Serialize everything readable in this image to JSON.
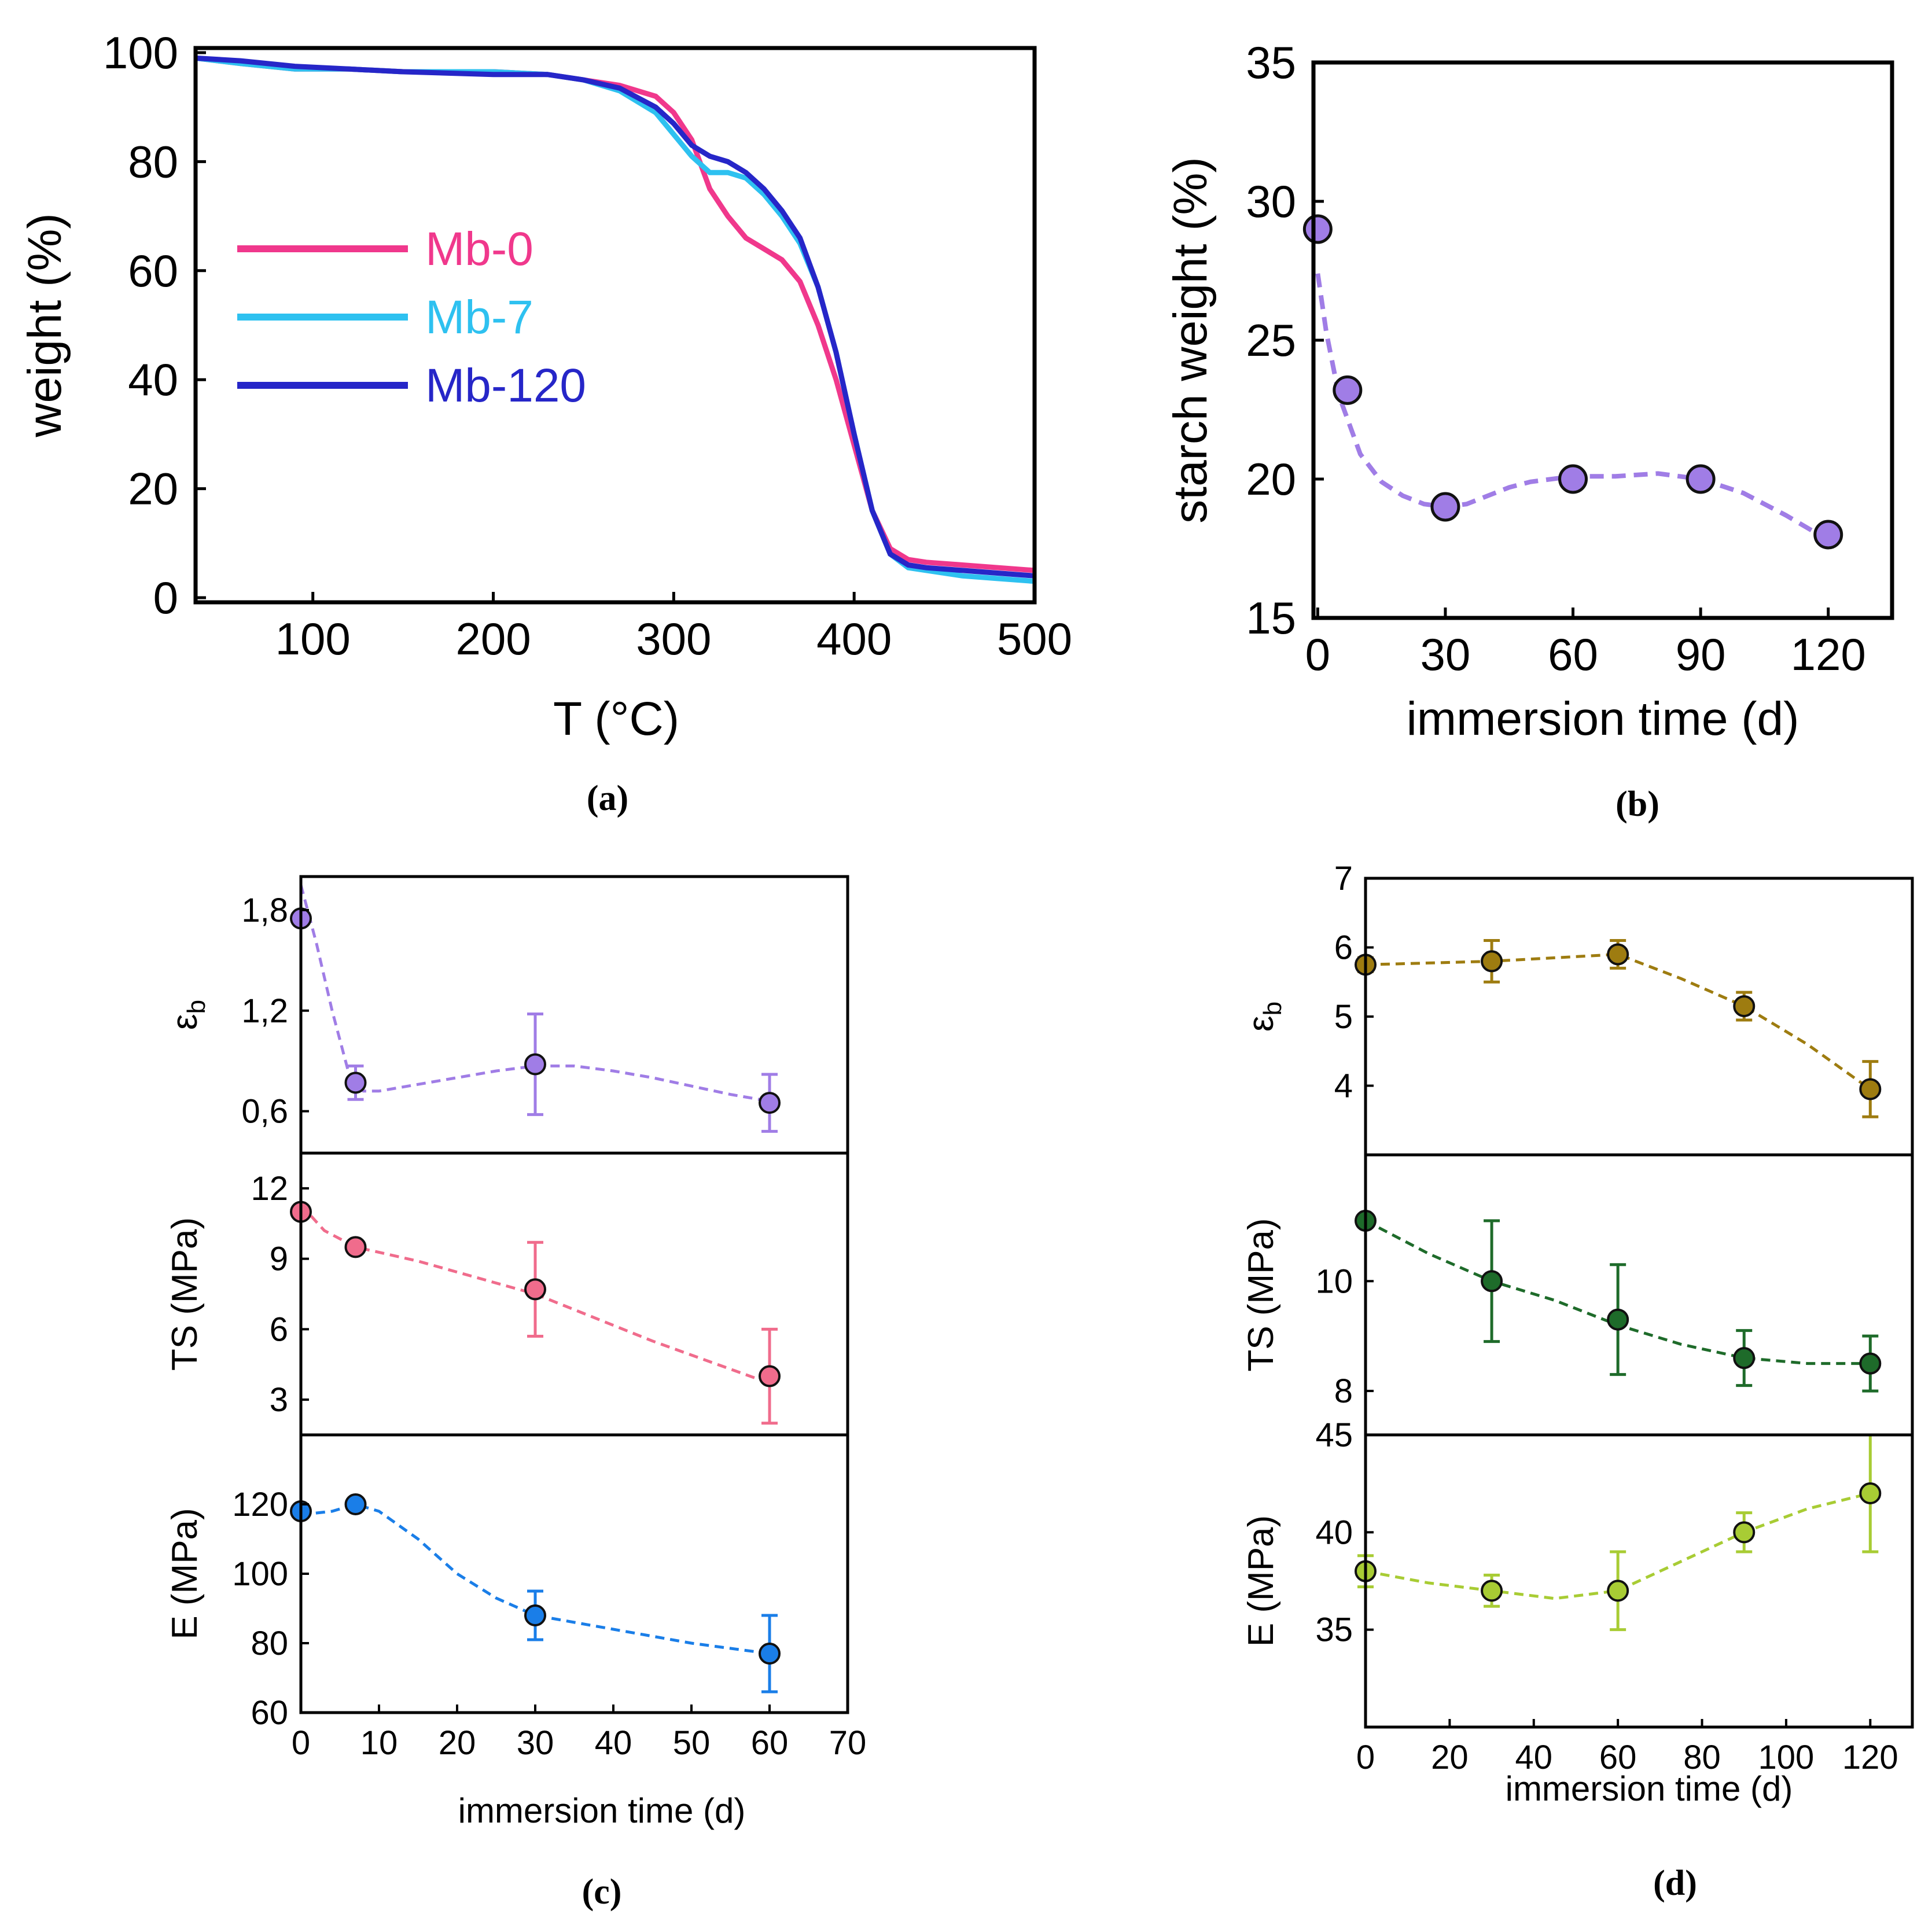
{
  "chart_data": [
    {
      "id": "a",
      "type": "line",
      "panel_label": "(a)",
      "xlabel": "T (°C)",
      "ylabel": "weight (%)",
      "xlim": [
        35,
        500
      ],
      "ylim": [
        0,
        100
      ],
      "xticks": [
        "100",
        "200",
        "300",
        "400",
        "500"
      ],
      "yticks": [
        "0",
        "20",
        "40",
        "60",
        "80",
        "100"
      ],
      "legend_position": "center-left",
      "series": [
        {
          "name": "Mb-0",
          "color": "#f0388c",
          "x": [
            35,
            60,
            90,
            120,
            150,
            200,
            230,
            250,
            270,
            290,
            300,
            310,
            320,
            330,
            340,
            350,
            360,
            370,
            380,
            390,
            400,
            410,
            420,
            430,
            440,
            460,
            480,
            500
          ],
          "y": [
            99,
            98,
            97,
            97,
            96.5,
            96.5,
            96,
            95,
            94,
            92,
            89,
            84,
            75,
            70,
            66,
            64,
            62,
            58,
            50,
            40,
            28,
            16,
            9,
            7,
            6.5,
            6,
            5.5,
            5
          ]
        },
        {
          "name": "Mb-7",
          "color": "#2ec1f0",
          "x": [
            35,
            60,
            90,
            120,
            150,
            200,
            230,
            250,
            270,
            290,
            300,
            310,
            320,
            330,
            340,
            350,
            360,
            370,
            380,
            390,
            400,
            410,
            420,
            430,
            440,
            460,
            480,
            500
          ],
          "y": [
            99,
            98,
            97,
            97,
            96.5,
            96.5,
            96,
            95,
            93,
            89,
            85,
            81,
            78,
            78,
            77,
            74,
            70,
            65,
            57,
            45,
            30,
            16,
            8,
            5.5,
            5,
            4,
            3.5,
            3
          ]
        },
        {
          "name": "Mb-120",
          "color": "#2626c8",
          "x": [
            35,
            60,
            90,
            120,
            150,
            200,
            230,
            250,
            270,
            290,
            300,
            310,
            320,
            330,
            340,
            350,
            360,
            370,
            380,
            390,
            400,
            410,
            420,
            430,
            440,
            460,
            480,
            500
          ],
          "y": [
            99,
            98.5,
            97.5,
            97,
            96.5,
            96,
            96,
            95,
            93.5,
            90,
            87,
            83,
            81,
            80,
            78,
            75,
            71,
            66,
            57,
            45,
            30,
            16,
            8,
            6,
            5.5,
            5,
            4.5,
            4
          ]
        }
      ]
    },
    {
      "id": "b",
      "type": "scatter",
      "panel_label": "(b)",
      "xlabel": "immersion time (d)",
      "ylabel": "starch weight (%)",
      "xlim": [
        -1,
        135
      ],
      "ylim": [
        15,
        35
      ],
      "xticks": [
        "0",
        "30",
        "60",
        "90",
        "120"
      ],
      "yticks": [
        "15",
        "20",
        "25",
        "30",
        "35"
      ],
      "series": [
        {
          "name": "starch weight",
          "color": "#a07de6",
          "x": [
            0,
            7,
            30,
            60,
            90,
            120
          ],
          "y": [
            29,
            23.2,
            19,
            20,
            20,
            18
          ],
          "fit": {
            "x": [
              0,
              2,
              5,
              10,
              15,
              20,
              25,
              30,
              35,
              40,
              45,
              50,
              60,
              70,
              80,
              90,
              100,
              110,
              120
            ],
            "y": [
              27.4,
              25.3,
              23.0,
              20.9,
              19.9,
              19.4,
              19.1,
              19.0,
              19.1,
              19.4,
              19.7,
              19.9,
              20.1,
              20.1,
              20.2,
              20.0,
              19.5,
              18.7,
              17.8
            ]
          }
        }
      ]
    },
    {
      "id": "c",
      "type": "scatter",
      "panel_label": "(c)",
      "xlabel": "immersion time (d)",
      "xlim": [
        0,
        70
      ],
      "xticks": [
        "0",
        "10",
        "20",
        "30",
        "40",
        "50",
        "60",
        "70"
      ],
      "subplots": [
        {
          "ylabel_main": "ε",
          "ylabel_sub": "b",
          "ylim": [
            0.35,
            2.0
          ],
          "yticks": [
            "0,6",
            "1,2",
            "1,8"
          ],
          "ytick_values": [
            0.6,
            1.2,
            1.8
          ],
          "color": "#a07de6",
          "x": [
            0,
            7,
            30,
            60
          ],
          "y": [
            1.75,
            0.77,
            0.88,
            0.65
          ],
          "err": [
            0,
            0.1,
            0.3,
            0.17
          ],
          "fit": {
            "x": [
              0,
              2,
              4,
              6,
              8,
              10,
              15,
              20,
              25,
              30,
              35,
              40,
              45,
              50,
              55,
              60
            ],
            "y": [
              1.95,
              1.6,
              1.2,
              0.85,
              0.72,
              0.72,
              0.76,
              0.8,
              0.84,
              0.87,
              0.87,
              0.84,
              0.8,
              0.75,
              0.7,
              0.66
            ]
          }
        },
        {
          "ylabel_main": "TS (MPa)",
          "ylim": [
            1.5,
            13.5
          ],
          "yticks": [
            "3",
            "6",
            "9",
            "12"
          ],
          "ytick_values": [
            3,
            6,
            9,
            12
          ],
          "color": "#f06c8c",
          "x": [
            0,
            7,
            30,
            60
          ],
          "y": [
            11,
            9.5,
            7.7,
            4
          ],
          "err": [
            0,
            0,
            2,
            2
          ],
          "fit": {
            "x": [
              0,
              3,
              7,
              15,
              30,
              45,
              60
            ],
            "y": [
              11.3,
              10.2,
              9.5,
              8.9,
              7.5,
              5.5,
              3.7
            ]
          }
        },
        {
          "ylabel_main": "E (MPa)",
          "ylim": [
            60,
            140
          ],
          "yticks": [
            "60",
            "80",
            "100",
            "120"
          ],
          "ytick_values": [
            60,
            80,
            100,
            120
          ],
          "color": "#1a7ee8",
          "x": [
            0,
            7,
            30,
            60
          ],
          "y": [
            118,
            120,
            88,
            77
          ],
          "err": [
            0,
            0,
            7,
            11
          ],
          "fit": {
            "x": [
              0,
              4,
              7,
              10,
              15,
              20,
              25,
              30,
              40,
              50,
              60
            ],
            "y": [
              117,
              118,
              120,
              118,
              110,
              100,
              93,
              88,
              84,
              80,
              77
            ]
          }
        }
      ]
    },
    {
      "id": "d",
      "type": "scatter",
      "panel_label": "(d)",
      "xlabel": "immersion time (d)",
      "xlim": [
        0,
        130
      ],
      "xticks": [
        "0",
        "20",
        "40",
        "60",
        "80",
        "100",
        "120"
      ],
      "subplots": [
        {
          "ylabel_main": "ε",
          "ylabel_sub": "b",
          "ylim": [
            3.0,
            7.0
          ],
          "yticks": [
            "4",
            "5",
            "6",
            "7"
          ],
          "ytick_values": [
            4,
            5,
            6,
            7
          ],
          "color": "#9e7c10",
          "x": [
            0,
            30,
            60,
            90,
            120
          ],
          "y": [
            5.75,
            5.8,
            5.9,
            5.15,
            3.95
          ],
          "err": [
            0.1,
            0.3,
            0.2,
            0.2,
            0.4
          ],
          "fit": {
            "x": [
              0,
              30,
              60,
              75,
              90,
              105,
              120
            ],
            "y": [
              5.75,
              5.8,
              5.9,
              5.55,
              5.15,
              4.6,
              3.95
            ]
          }
        },
        {
          "ylabel_main": "TS (MPa)",
          "ylim": [
            7.2,
            12.3
          ],
          "yticks": [
            "8",
            "10"
          ],
          "ytick_values": [
            8,
            10
          ],
          "color": "#1e6b2a",
          "x": [
            0,
            30,
            60,
            90,
            120
          ],
          "y": [
            11.1,
            10,
            9.3,
            8.6,
            8.5
          ],
          "err": [
            0,
            1.1,
            1.0,
            0.5,
            0.5
          ],
          "fit": {
            "x": [
              0,
              15,
              30,
              45,
              60,
              75,
              90,
              105,
              120
            ],
            "y": [
              11.1,
              10.5,
              10,
              9.65,
              9.2,
              8.85,
              8.6,
              8.5,
              8.5
            ]
          }
        },
        {
          "ylabel_main": "E (MPa)",
          "ylim": [
            30,
            45
          ],
          "yticks": [
            "35",
            "40",
            "45"
          ],
          "ytick_values": [
            35,
            40,
            45
          ],
          "color": "#a8cc34",
          "x": [
            0,
            30,
            60,
            90,
            120
          ],
          "y": [
            38,
            37,
            37,
            40,
            42
          ],
          "err": [
            0.8,
            0.8,
            2,
            1,
            3
          ],
          "fit": {
            "x": [
              0,
              15,
              30,
              45,
              60,
              75,
              90,
              105,
              120
            ],
            "y": [
              38,
              37.4,
              37,
              36.6,
              37,
              38.5,
              40,
              41.2,
              42
            ]
          }
        }
      ]
    }
  ]
}
